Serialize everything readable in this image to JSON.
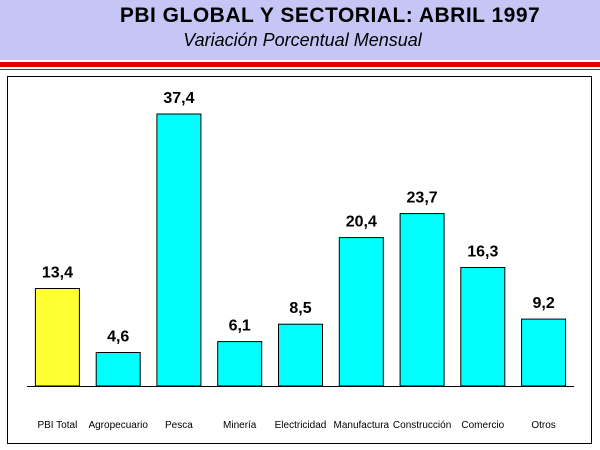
{
  "header": {
    "title": "PBI GLOBAL Y SECTORIAL: ABRIL 1997",
    "subtitle": "Variación Porcentual Mensual"
  },
  "colors": {
    "header_bg": "#c6c6f6",
    "rule": "#e00000",
    "highlight_bar": "#ffff33",
    "bar": "#00ffff"
  },
  "chart_data": {
    "type": "bar",
    "title": "PBI GLOBAL Y SECTORIAL: ABRIL 1997",
    "subtitle": "Variación Porcentual Mensual",
    "xlabel": "",
    "ylabel": "",
    "ylim": [
      0,
      40
    ],
    "grid": false,
    "legend": "none",
    "categories": [
      "PBI Total",
      "Agropecuario",
      "Pesca",
      "Minería",
      "Electricidad",
      "Manufactura",
      "Construcción",
      "Comercio",
      "Otros"
    ],
    "values": [
      13.4,
      4.6,
      37.4,
      6.1,
      8.5,
      20.4,
      23.7,
      16.3,
      9.2
    ],
    "value_labels": [
      "13,4",
      "4,6",
      "37,4",
      "6,1",
      "8,5",
      "20,4",
      "23,7",
      "16,3",
      "9,2"
    ],
    "bar_colors": [
      "#ffff33",
      "#00ffff",
      "#00ffff",
      "#00ffff",
      "#00ffff",
      "#00ffff",
      "#00ffff",
      "#00ffff",
      "#00ffff"
    ]
  }
}
